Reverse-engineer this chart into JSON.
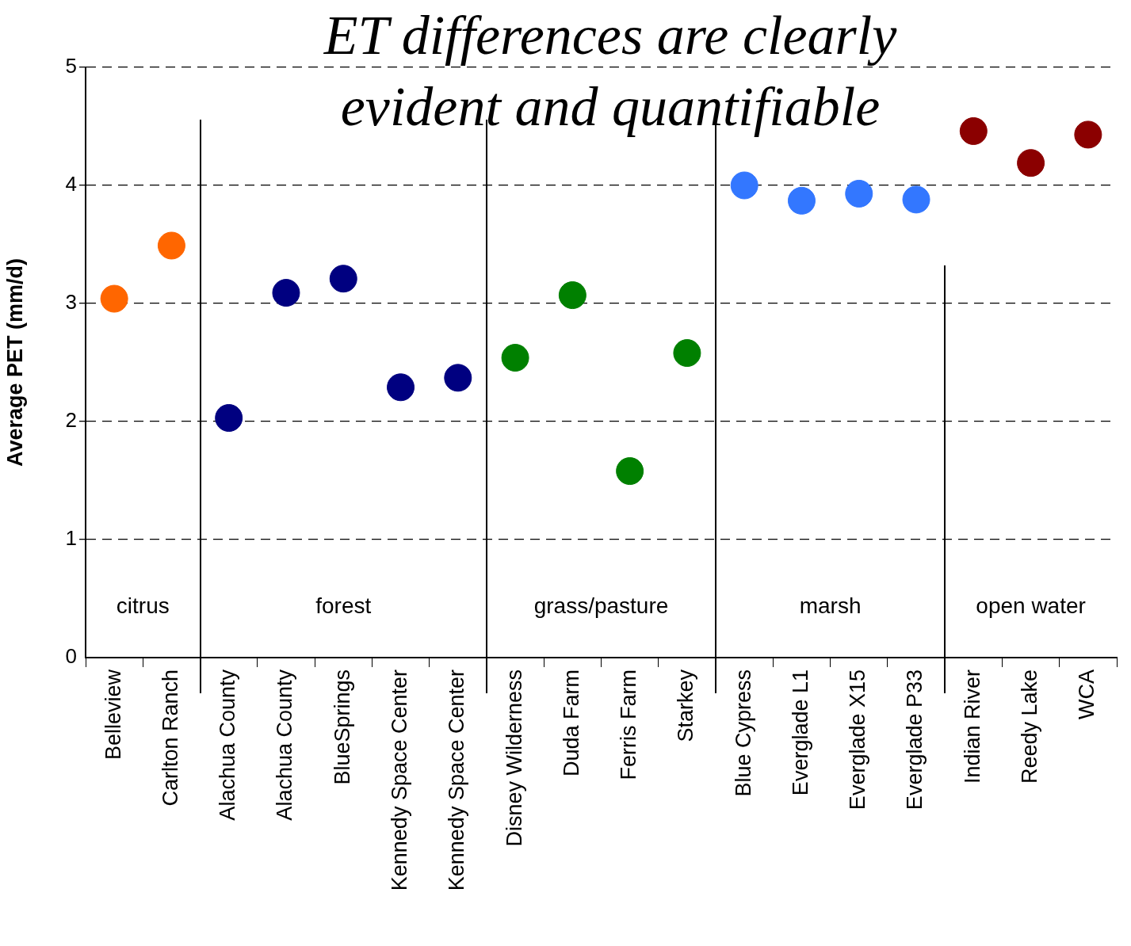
{
  "chart_data": {
    "type": "scatter",
    "title": "ET differences are clearly evident and quantifiable",
    "ylabel": "Average PET (mm/d)",
    "categories": [
      "Belleview",
      "Carlton Ranch",
      "Alachua County",
      "Alachua County",
      "BlueSprings",
      "Kennedy Space Center",
      "Kennedy Space Center",
      "Disney Wilderness",
      "Duda Farm",
      "Ferris Farm",
      "Starkey",
      "Blue Cypress",
      "Everglade L1",
      "Everglade X15",
      "Everglade P33",
      "Indian River",
      "Reedy Lake",
      "WCA"
    ],
    "series": [
      {
        "color": "#ff6600",
        "values": [
          3.04,
          3.49,
          null,
          null,
          null,
          null,
          null,
          null,
          null,
          null,
          null,
          null,
          null,
          null,
          null,
          null,
          null,
          null
        ]
      },
      {
        "color": "#000080",
        "values": [
          null,
          null,
          2.03,
          3.09,
          3.21,
          2.29,
          2.37,
          null,
          null,
          null,
          null,
          null,
          null,
          null,
          null,
          null,
          null,
          null
        ]
      },
      {
        "color": "#008000",
        "values": [
          null,
          null,
          null,
          null,
          null,
          null,
          null,
          2.54,
          3.07,
          1.58,
          2.58,
          null,
          null,
          null,
          null,
          null,
          null,
          null
        ]
      },
      {
        "color": "#3377ff",
        "values": [
          null,
          null,
          null,
          null,
          null,
          null,
          null,
          null,
          null,
          null,
          null,
          4.0,
          3.87,
          3.93,
          3.88,
          null,
          null,
          null
        ]
      },
      {
        "color": "#8b0000",
        "values": [
          null,
          null,
          null,
          null,
          null,
          null,
          null,
          null,
          null,
          null,
          null,
          null,
          null,
          null,
          null,
          4.46,
          4.19,
          4.43
        ]
      }
    ],
    "annotations": [
      "citrus",
      "forest",
      "grass/pasture",
      "marsh",
      "open water"
    ],
    "ylim": [
      0,
      5
    ],
    "yticks": [
      0,
      1,
      2,
      3,
      4,
      5
    ],
    "grid": "y",
    "line_style": "dashed",
    "marker": "circle",
    "legend": false
  }
}
